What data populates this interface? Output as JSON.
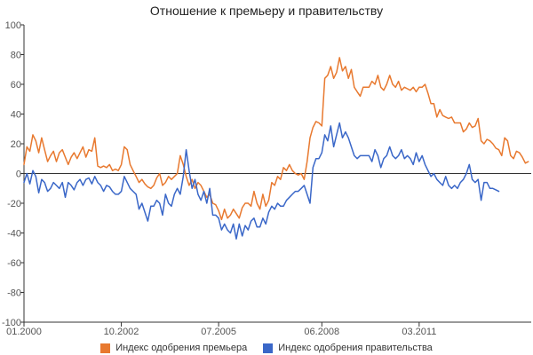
{
  "chart_data": {
    "type": "line",
    "title": "Отношение к премьеру и правительству",
    "xlabel": "",
    "ylabel": "",
    "ylim": [
      -100,
      100
    ],
    "y_ticks": [
      "100",
      "80",
      "60",
      "40",
      "20",
      "0",
      "-20",
      "-40",
      "-60",
      "-80",
      "-100"
    ],
    "x_ticks": [
      "01.2000",
      "10.2002",
      "07.2005",
      "06.2008",
      "03.2011"
    ],
    "x_tick_months": [
      0,
      33,
      66,
      101,
      134
    ],
    "x_range_months": [
      0,
      172
    ],
    "grid": false,
    "legend_position": "bottom",
    "series": [
      {
        "name": "Индекс одобрения премьера",
        "color": "#e8792f",
        "points": [
          [
            0,
            6
          ],
          [
            1,
            18
          ],
          [
            2,
            15
          ],
          [
            3,
            26
          ],
          [
            4,
            22
          ],
          [
            5,
            14
          ],
          [
            6,
            24
          ],
          [
            7,
            16
          ],
          [
            8,
            8
          ],
          [
            9,
            12
          ],
          [
            10,
            15
          ],
          [
            11,
            8
          ],
          [
            12,
            14
          ],
          [
            13,
            16
          ],
          [
            14,
            11
          ],
          [
            15,
            6
          ],
          [
            16,
            11
          ],
          [
            17,
            14
          ],
          [
            18,
            10
          ],
          [
            19,
            14
          ],
          [
            20,
            18
          ],
          [
            21,
            11
          ],
          [
            22,
            16
          ],
          [
            23,
            15
          ],
          [
            24,
            24
          ],
          [
            25,
            5
          ],
          [
            26,
            4
          ],
          [
            27,
            5
          ],
          [
            28,
            4
          ],
          [
            29,
            6
          ],
          [
            30,
            2
          ],
          [
            31,
            3
          ],
          [
            32,
            2
          ],
          [
            33,
            6
          ],
          [
            34,
            18
          ],
          [
            35,
            16
          ],
          [
            36,
            6
          ],
          [
            37,
            2
          ],
          [
            38,
            -2
          ],
          [
            39,
            -6
          ],
          [
            40,
            -4
          ],
          [
            41,
            -7
          ],
          [
            42,
            -9
          ],
          [
            43,
            -10
          ],
          [
            44,
            -8
          ],
          [
            45,
            -3
          ],
          [
            46,
            0
          ],
          [
            47,
            -8
          ],
          [
            48,
            -6
          ],
          [
            49,
            -2
          ],
          [
            50,
            -4
          ],
          [
            51,
            -2
          ],
          [
            52,
            0
          ],
          [
            53,
            12
          ],
          [
            54,
            6
          ],
          [
            55,
            -2
          ],
          [
            56,
            -8
          ],
          [
            57,
            -4
          ],
          [
            58,
            -10
          ],
          [
            59,
            -6
          ],
          [
            60,
            -8
          ],
          [
            61,
            -12
          ],
          [
            62,
            -16
          ],
          [
            63,
            -14
          ],
          [
            64,
            -20
          ],
          [
            65,
            -21
          ],
          [
            66,
            -25
          ],
          [
            67,
            -31
          ],
          [
            68,
            -24
          ],
          [
            69,
            -30
          ],
          [
            70,
            -28
          ],
          [
            71,
            -24
          ],
          [
            72,
            -27
          ],
          [
            73,
            -30
          ],
          [
            74,
            -23
          ],
          [
            75,
            -20
          ],
          [
            76,
            -20
          ],
          [
            77,
            -22
          ],
          [
            78,
            -12
          ],
          [
            79,
            -20
          ],
          [
            80,
            -24
          ],
          [
            81,
            -14
          ],
          [
            82,
            -22
          ],
          [
            83,
            -18
          ],
          [
            84,
            -6
          ],
          [
            85,
            -8
          ],
          [
            86,
            -2
          ],
          [
            87,
            -4
          ],
          [
            88,
            4
          ],
          [
            89,
            2
          ],
          [
            90,
            6
          ],
          [
            91,
            2
          ],
          [
            92,
            0
          ],
          [
            93,
            -1
          ],
          [
            94,
            0
          ],
          [
            95,
            -4
          ],
          [
            96,
            8
          ],
          [
            97,
            24
          ],
          [
            98,
            31
          ],
          [
            99,
            35
          ],
          [
            100,
            34
          ],
          [
            101,
            32
          ],
          [
            102,
            64
          ],
          [
            103,
            66
          ],
          [
            104,
            72
          ],
          [
            105,
            64
          ],
          [
            106,
            68
          ],
          [
            107,
            78
          ],
          [
            108,
            69
          ],
          [
            109,
            72
          ],
          [
            110,
            64
          ],
          [
            111,
            70
          ],
          [
            112,
            58
          ],
          [
            113,
            55
          ],
          [
            114,
            52
          ],
          [
            115,
            58
          ],
          [
            116,
            58
          ],
          [
            117,
            58
          ],
          [
            118,
            62
          ],
          [
            119,
            60
          ],
          [
            120,
            66
          ],
          [
            121,
            58
          ],
          [
            122,
            56
          ],
          [
            123,
            60
          ],
          [
            124,
            66
          ],
          [
            125,
            60
          ],
          [
            126,
            58
          ],
          [
            127,
            62
          ],
          [
            128,
            56
          ],
          [
            129,
            58
          ],
          [
            130,
            57
          ],
          [
            131,
            56
          ],
          [
            132,
            58
          ],
          [
            133,
            55
          ],
          [
            134,
            58
          ],
          [
            135,
            58
          ],
          [
            136,
            60
          ],
          [
            137,
            54
          ],
          [
            138,
            47
          ],
          [
            139,
            47
          ],
          [
            140,
            38
          ],
          [
            141,
            43
          ],
          [
            142,
            39
          ],
          [
            143,
            38
          ],
          [
            144,
            37
          ],
          [
            145,
            38
          ],
          [
            146,
            34
          ],
          [
            147,
            34
          ],
          [
            148,
            34
          ],
          [
            149,
            28
          ],
          [
            150,
            30
          ],
          [
            151,
            34
          ],
          [
            152,
            31
          ],
          [
            153,
            32
          ],
          [
            154,
            37
          ],
          [
            155,
            22
          ],
          [
            156,
            20
          ],
          [
            157,
            23
          ],
          [
            158,
            22
          ],
          [
            159,
            20
          ],
          [
            160,
            17
          ],
          [
            161,
            16
          ],
          [
            162,
            12
          ],
          [
            163,
            24
          ],
          [
            164,
            22
          ],
          [
            165,
            12
          ],
          [
            166,
            10
          ],
          [
            167,
            15
          ],
          [
            168,
            14
          ],
          [
            169,
            11
          ],
          [
            170,
            7
          ],
          [
            171,
            8
          ]
        ]
      },
      {
        "name": "Индекс одобрения правительства",
        "color": "#3a67c8",
        "points": [
          [
            0,
            -6
          ],
          [
            1,
            0
          ],
          [
            2,
            -7
          ],
          [
            3,
            2
          ],
          [
            4,
            -2
          ],
          [
            5,
            -13
          ],
          [
            6,
            -4
          ],
          [
            7,
            -6
          ],
          [
            8,
            -12
          ],
          [
            9,
            -10
          ],
          [
            10,
            -6
          ],
          [
            11,
            -8
          ],
          [
            12,
            -10
          ],
          [
            13,
            -6
          ],
          [
            14,
            -16
          ],
          [
            15,
            -6
          ],
          [
            16,
            -8
          ],
          [
            17,
            -11
          ],
          [
            18,
            -6
          ],
          [
            19,
            -4
          ],
          [
            20,
            -8
          ],
          [
            21,
            -4
          ],
          [
            22,
            -3
          ],
          [
            23,
            -7
          ],
          [
            24,
            -2
          ],
          [
            25,
            -6
          ],
          [
            26,
            -8
          ],
          [
            27,
            -12
          ],
          [
            28,
            -8
          ],
          [
            29,
            -9
          ],
          [
            30,
            -12
          ],
          [
            31,
            -14
          ],
          [
            32,
            -14
          ],
          [
            33,
            -12
          ],
          [
            34,
            -2
          ],
          [
            35,
            -6
          ],
          [
            36,
            -10
          ],
          [
            37,
            -12
          ],
          [
            38,
            -14
          ],
          [
            39,
            -24
          ],
          [
            40,
            -20
          ],
          [
            41,
            -26
          ],
          [
            42,
            -32
          ],
          [
            43,
            -22
          ],
          [
            44,
            -22
          ],
          [
            45,
            -18
          ],
          [
            46,
            -20
          ],
          [
            47,
            -28
          ],
          [
            48,
            -14
          ],
          [
            49,
            -20
          ],
          [
            50,
            -22
          ],
          [
            51,
            -14
          ],
          [
            52,
            -10
          ],
          [
            53,
            -14
          ],
          [
            54,
            -2
          ],
          [
            55,
            16
          ],
          [
            56,
            2
          ],
          [
            57,
            -10
          ],
          [
            58,
            -4
          ],
          [
            59,
            -14
          ],
          [
            60,
            -18
          ],
          [
            61,
            -12
          ],
          [
            62,
            -20
          ],
          [
            63,
            -10
          ],
          [
            64,
            -28
          ],
          [
            65,
            -28
          ],
          [
            66,
            -30
          ],
          [
            67,
            -38
          ],
          [
            68,
            -34
          ],
          [
            69,
            -38
          ],
          [
            70,
            -40
          ],
          [
            71,
            -34
          ],
          [
            72,
            -44
          ],
          [
            73,
            -34
          ],
          [
            74,
            -42
          ],
          [
            75,
            -35
          ],
          [
            76,
            -38
          ],
          [
            77,
            -32
          ],
          [
            78,
            -30
          ],
          [
            79,
            -36
          ],
          [
            80,
            -36
          ],
          [
            81,
            -30
          ],
          [
            82,
            -34
          ],
          [
            83,
            -26
          ],
          [
            84,
            -22
          ],
          [
            85,
            -24
          ],
          [
            86,
            -20
          ],
          [
            87,
            -22
          ],
          [
            88,
            -22
          ],
          [
            89,
            -18
          ],
          [
            90,
            -16
          ],
          [
            91,
            -14
          ],
          [
            92,
            -12
          ],
          [
            93,
            -12
          ],
          [
            94,
            -10
          ],
          [
            95,
            -8
          ],
          [
            96,
            -14
          ],
          [
            97,
            -20
          ],
          [
            98,
            4
          ],
          [
            99,
            10
          ],
          [
            100,
            10
          ],
          [
            101,
            14
          ],
          [
            102,
            26
          ],
          [
            103,
            22
          ],
          [
            104,
            32
          ],
          [
            105,
            18
          ],
          [
            106,
            26
          ],
          [
            107,
            34
          ],
          [
            108,
            24
          ],
          [
            109,
            28
          ],
          [
            110,
            24
          ],
          [
            111,
            18
          ],
          [
            112,
            12
          ],
          [
            113,
            10
          ],
          [
            114,
            12
          ],
          [
            115,
            12
          ],
          [
            116,
            12
          ],
          [
            117,
            12
          ],
          [
            118,
            8
          ],
          [
            119,
            16
          ],
          [
            120,
            12
          ],
          [
            121,
            4
          ],
          [
            122,
            10
          ],
          [
            123,
            12
          ],
          [
            124,
            18
          ],
          [
            125,
            12
          ],
          [
            126,
            10
          ],
          [
            127,
            12
          ],
          [
            128,
            16
          ],
          [
            129,
            10
          ],
          [
            130,
            12
          ],
          [
            131,
            10
          ],
          [
            132,
            6
          ],
          [
            133,
            14
          ],
          [
            134,
            8
          ],
          [
            135,
            12
          ],
          [
            136,
            6
          ],
          [
            137,
            2
          ],
          [
            138,
            -2
          ],
          [
            139,
            0
          ],
          [
            140,
            -4
          ],
          [
            141,
            -6
          ],
          [
            142,
            -8
          ],
          [
            143,
            -2
          ],
          [
            144,
            -8
          ],
          [
            145,
            -10
          ],
          [
            146,
            -8
          ],
          [
            147,
            -10
          ],
          [
            148,
            -6
          ],
          [
            149,
            -4
          ],
          [
            150,
            0
          ],
          [
            151,
            6
          ],
          [
            152,
            -4
          ],
          [
            153,
            -6
          ],
          [
            154,
            -4
          ],
          [
            155,
            -18
          ],
          [
            156,
            -6
          ],
          [
            157,
            -6
          ],
          [
            158,
            -10
          ],
          [
            159,
            -10
          ],
          [
            160,
            -11
          ],
          [
            161,
            -12
          ]
        ]
      }
    ]
  }
}
